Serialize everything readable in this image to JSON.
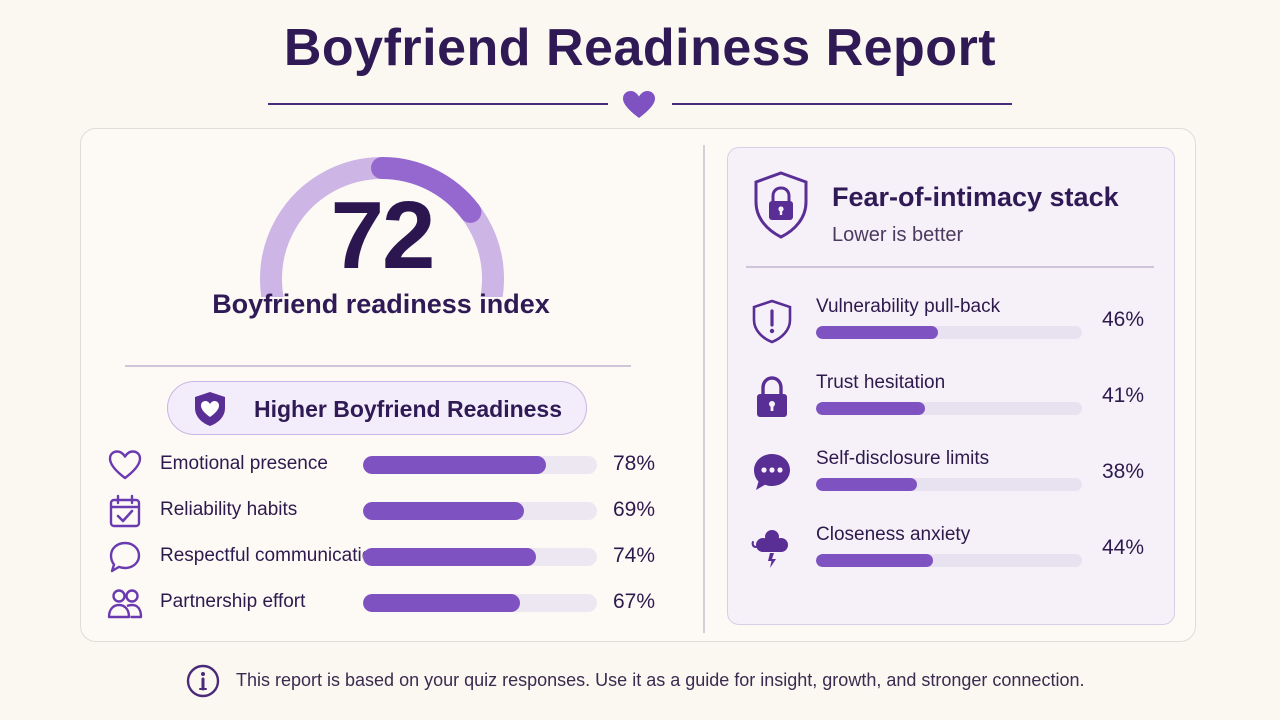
{
  "title": "Boyfriend Readiness Report",
  "colors": {
    "accent": "#7f52c2",
    "accent_light": "#c4a8e3",
    "dark": "#2f1a55",
    "track": "#ede7f2"
  },
  "gauge": {
    "score": "72",
    "value": 72,
    "max": 100,
    "label": "Boyfriend readiness index"
  },
  "badge": {
    "label": "Higher Boyfriend Readiness",
    "icon": "shield-heart-icon"
  },
  "readiness_metrics": [
    {
      "label": "Emotional presence",
      "value": 78,
      "display": "78%",
      "icon": "heart-icon"
    },
    {
      "label": "Reliability habits",
      "value": 69,
      "display": "69%",
      "icon": "calendar-check-icon"
    },
    {
      "label": "Respectful communication",
      "value": 74,
      "display": "74%",
      "icon": "speech-bubble-icon"
    },
    {
      "label": "Partnership effort",
      "value": 67,
      "display": "67%",
      "icon": "people-icon"
    }
  ],
  "fear_panel": {
    "title": "Fear-of-intimacy stack",
    "subtitle": "Lower is better",
    "icon": "shield-lock-icon",
    "items": [
      {
        "label": "Vulnerability pull-back",
        "value": 46,
        "display": "46%",
        "icon": "shield-alert-icon"
      },
      {
        "label": "Trust hesitation",
        "value": 41,
        "display": "41%",
        "icon": "padlock-icon"
      },
      {
        "label": "Self-disclosure limits",
        "value": 38,
        "display": "38%",
        "icon": "chat-dots-icon"
      },
      {
        "label": "Closeness anxiety",
        "value": 44,
        "display": "44%",
        "icon": "storm-cloud-icon"
      }
    ]
  },
  "footer": {
    "text": "This report is based on your quiz responses. Use it as a guide for insight, growth, and stronger connection.",
    "icon": "info-icon"
  }
}
